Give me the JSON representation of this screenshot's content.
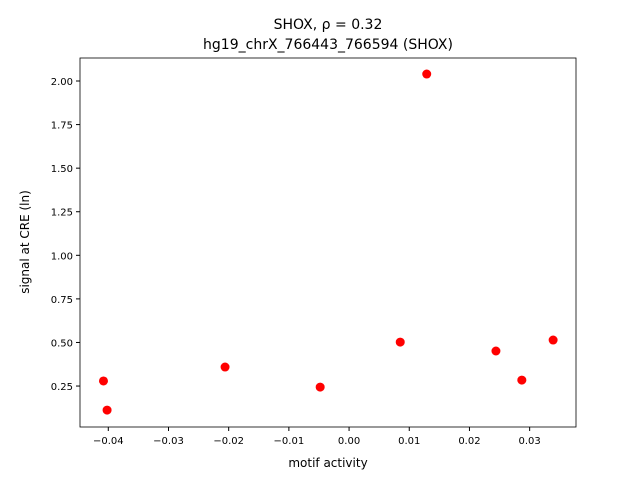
{
  "chart_data": {
    "type": "scatter",
    "title": [
      "SHOX, ρ = 0.32",
      "hg19_chrX_766443_766594 (SHOX)"
    ],
    "xlabel": "motif activity",
    "ylabel": "signal at CRE (ln)",
    "x": [
      -0.0408,
      -0.0402,
      -0.0206,
      -0.0048,
      0.0085,
      0.0129,
      0.0244,
      0.0287,
      0.0339
    ],
    "values": [
      0.279,
      0.112,
      0.359,
      0.244,
      0.502,
      2.04,
      0.451,
      0.284,
      0.514
    ],
    "color": "#ff0000",
    "xlim": [
      -0.0447,
      0.0377
    ],
    "ylim": [
      0.015,
      2.132
    ],
    "xticks": [
      {
        "value": -0.04,
        "label": "−0.04"
      },
      {
        "value": -0.03,
        "label": "−0.03"
      },
      {
        "value": -0.02,
        "label": "−0.02"
      },
      {
        "value": -0.01,
        "label": "−0.01"
      },
      {
        "value": 0,
        "label": "0.00"
      },
      0.01,
      0.02,
      0.03
    ],
    "yticks": [
      0.25,
      {
        "value": 0.5,
        "label": "0.50"
      },
      0.75,
      {
        "value": 1,
        "label": "1.00"
      },
      1.25,
      {
        "value": 1.5,
        "label": "1.50"
      },
      1.75,
      {
        "value": 2,
        "label": "2.00"
      }
    ],
    "grid": false
  }
}
